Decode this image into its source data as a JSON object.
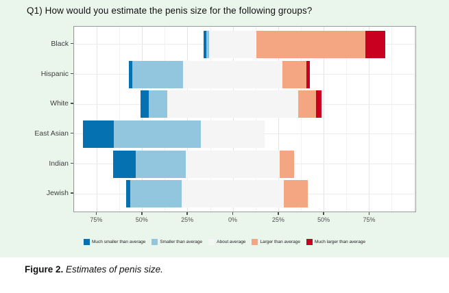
{
  "title": "Q1) How would you estimate the penis size for the following groups?",
  "caption": {
    "label": "Figure 2.",
    "text": "  Estimates of penis size."
  },
  "colors": {
    "background": "#eaf5ec",
    "panel_background": "#ffffff",
    "panel_border": "#979b98",
    "grid_major": "#e4e4e4",
    "grid_minor": "#f2f2f2",
    "tick_text": "#4f4f4f",
    "category_text": "#3d3d3d"
  },
  "chart_data": {
    "type": "bar",
    "subtype": "diverging-stacked-likert",
    "title": "Q1) How would you estimate the penis size for the following groups?",
    "categories": [
      "Black",
      "Hispanic",
      "White",
      "East Asian",
      "Indian",
      "Jewish"
    ],
    "series": [
      {
        "name": "Much smaller than average",
        "color": "#0571b0",
        "values": [
          1.5,
          2,
          4.5,
          17,
          12.5,
          2
        ]
      },
      {
        "name": "Smaller than average",
        "color": "#92c5de",
        "values": [
          1.5,
          28,
          10.5,
          48,
          27.5,
          28.5
        ]
      },
      {
        "name": "About average",
        "color": "#f5f5f5",
        "values": [
          26,
          55,
          72,
          35,
          52,
          56.5
        ]
      },
      {
        "name": "Larger than average",
        "color": "#f4a582",
        "values": [
          60,
          13,
          10,
          0,
          8,
          13
        ]
      },
      {
        "name": "Much larger than average",
        "color": "#ca0020",
        "values": [
          11,
          2,
          3,
          0,
          0,
          0
        ]
      }
    ],
    "axis": {
      "unit": "%",
      "ticks": [
        -75,
        -50,
        -25,
        0,
        25,
        50,
        75
      ],
      "tick_labels": [
        "75%",
        "50%",
        "25%",
        "0%",
        "25%",
        "50%",
        "75%"
      ],
      "x_min": -87.6,
      "x_max": 100.8,
      "minor_step": 12.5,
      "neutral_split": "About average centered on 0%"
    },
    "legend_position": "bottom",
    "grid": true
  }
}
